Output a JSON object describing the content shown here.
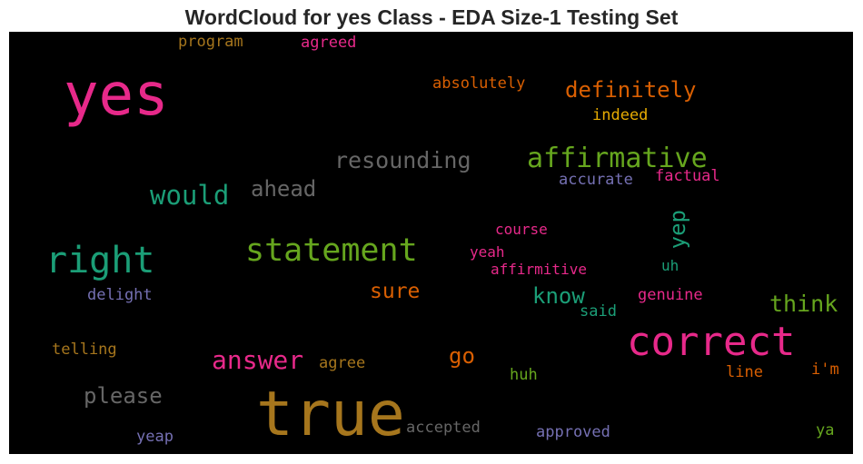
{
  "chart_data": {
    "type": "wordcloud",
    "title": "WordCloud for yes Class - EDA Size-1 Testing Set",
    "background": "#000000",
    "words": [
      {
        "text": "yes",
        "color": "#e7298a"
      },
      {
        "text": "true",
        "color": "#a6761d"
      },
      {
        "text": "correct",
        "color": "#e7298a"
      },
      {
        "text": "right",
        "color": "#1b9e77"
      },
      {
        "text": "statement",
        "color": "#66a61e"
      },
      {
        "text": "affirmative",
        "color": "#66a61e"
      },
      {
        "text": "definitely",
        "color": "#d95f02"
      },
      {
        "text": "resounding",
        "color": "#666666"
      },
      {
        "text": "would",
        "color": "#1b9e77"
      },
      {
        "text": "ahead",
        "color": "#666666"
      },
      {
        "text": "answer",
        "color": "#e7298a"
      },
      {
        "text": "please",
        "color": "#666666"
      },
      {
        "text": "think",
        "color": "#66a61e"
      },
      {
        "text": "know",
        "color": "#1b9e77"
      },
      {
        "text": "sure",
        "color": "#d95f02"
      },
      {
        "text": "go",
        "color": "#d95f02"
      },
      {
        "text": "yep",
        "color": "#1b9e77"
      },
      {
        "text": "absolutely",
        "color": "#d95f02"
      },
      {
        "text": "indeed",
        "color": "#e6ab02"
      },
      {
        "text": "program",
        "color": "#a6761d"
      },
      {
        "text": "agreed",
        "color": "#e7298a"
      },
      {
        "text": "accurate",
        "color": "#7570b3"
      },
      {
        "text": "factual",
        "color": "#e7298a"
      },
      {
        "text": "course",
        "color": "#e7298a"
      },
      {
        "text": "yeah",
        "color": "#e7298a"
      },
      {
        "text": "affirmitive",
        "color": "#e7298a"
      },
      {
        "text": "uh",
        "color": "#1b9e77"
      },
      {
        "text": "delight",
        "color": "#7570b3"
      },
      {
        "text": "genuine",
        "color": "#e7298a"
      },
      {
        "text": "said",
        "color": "#1b9e77"
      },
      {
        "text": "telling",
        "color": "#a6761d"
      },
      {
        "text": "agree",
        "color": "#a6761d"
      },
      {
        "text": "huh",
        "color": "#66a61e"
      },
      {
        "text": "line",
        "color": "#d95f02"
      },
      {
        "text": "i'm",
        "color": "#d95f02"
      },
      {
        "text": "accepted",
        "color": "#666666"
      },
      {
        "text": "approved",
        "color": "#7570b3"
      },
      {
        "text": "yeap",
        "color": "#7570b3"
      },
      {
        "text": "ya",
        "color": "#66a61e"
      }
    ]
  }
}
